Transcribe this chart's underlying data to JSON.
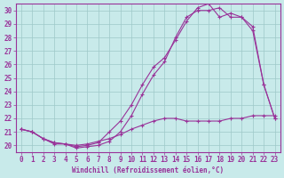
{
  "title": "",
  "xlabel": "Windchill (Refroidissement éolien,°C)",
  "background_color": "#c8eaea",
  "grid_color": "#9ec8c8",
  "line_color": "#993399",
  "xlim": [
    -0.5,
    23.5
  ],
  "ylim": [
    19.5,
    30.5
  ],
  "yticks": [
    20,
    21,
    22,
    23,
    24,
    25,
    26,
    27,
    28,
    29,
    30
  ],
  "xticks": [
    0,
    1,
    2,
    3,
    4,
    5,
    6,
    7,
    8,
    9,
    10,
    11,
    12,
    13,
    14,
    15,
    16,
    17,
    18,
    19,
    20,
    21,
    22,
    23
  ],
  "line1_x": [
    0,
    1,
    2,
    3,
    4,
    5,
    6,
    7,
    8,
    9,
    10,
    11,
    12,
    13,
    14,
    15,
    16,
    17,
    18,
    19,
    20,
    21,
    22,
    23
  ],
  "line1_y": [
    21.2,
    21.0,
    20.5,
    20.1,
    20.1,
    19.8,
    19.9,
    20.0,
    20.3,
    21.0,
    22.2,
    23.8,
    25.2,
    26.2,
    28.0,
    29.5,
    30.0,
    30.0,
    30.2,
    29.5,
    29.5,
    28.5,
    24.5,
    22.0
  ],
  "line2_x": [
    0,
    1,
    2,
    3,
    4,
    5,
    6,
    7,
    8,
    9,
    10,
    11,
    12,
    13,
    14,
    15,
    16,
    17,
    18,
    19,
    20,
    21,
    22,
    23
  ],
  "line2_y": [
    21.2,
    21.0,
    20.5,
    20.2,
    20.1,
    19.9,
    20.0,
    20.2,
    21.0,
    21.8,
    23.0,
    24.5,
    25.8,
    26.5,
    27.8,
    29.2,
    30.2,
    30.5,
    29.5,
    29.8,
    29.5,
    28.8,
    24.5,
    22.0
  ],
  "line3_x": [
    0,
    1,
    2,
    3,
    4,
    5,
    6,
    7,
    8,
    9,
    10,
    11,
    12,
    13,
    14,
    15,
    16,
    17,
    18,
    19,
    20,
    21,
    22,
    23
  ],
  "line3_y": [
    21.2,
    21.0,
    20.5,
    20.2,
    20.1,
    20.0,
    20.1,
    20.3,
    20.5,
    20.8,
    21.2,
    21.5,
    21.8,
    22.0,
    22.0,
    21.8,
    21.8,
    21.8,
    21.8,
    22.0,
    22.0,
    22.2,
    22.2,
    22.2
  ]
}
